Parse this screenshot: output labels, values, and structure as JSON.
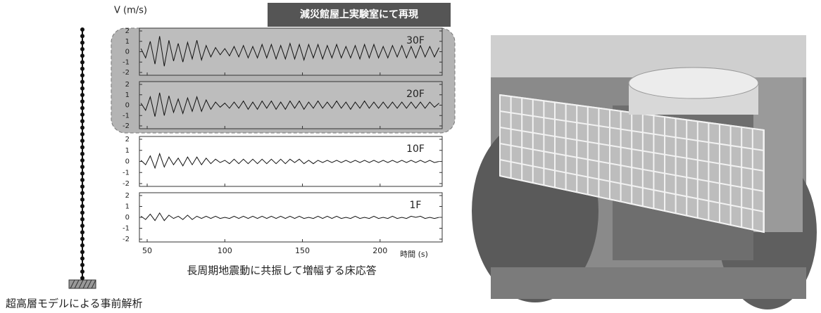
{
  "chart_data": {
    "type": "line",
    "y_label": "V (m/s)",
    "x_label": "時間 (s)",
    "caption": "長周期地震動に共振して増幅する床応答",
    "highlight_label": "減災館屋上実験室にて再現",
    "facets": true,
    "xlim": [
      45,
      240
    ],
    "xticks": [
      50,
      100,
      150,
      200
    ],
    "ylim": [
      -2,
      2
    ],
    "yticks": [
      -2,
      -1,
      0,
      1,
      2
    ],
    "x": [
      46,
      49,
      52,
      55,
      58,
      61,
      64,
      67,
      70,
      73,
      76,
      79,
      82,
      85,
      88,
      91,
      94,
      97,
      100,
      103,
      106,
      109,
      112,
      115,
      118,
      121,
      124,
      127,
      130,
      133,
      136,
      139,
      142,
      145,
      148,
      151,
      154,
      157,
      160,
      163,
      166,
      169,
      172,
      175,
      178,
      181,
      184,
      187,
      190,
      193,
      196,
      199,
      202,
      205,
      208,
      211,
      214,
      217,
      220,
      223,
      226,
      229,
      232,
      235,
      238
    ],
    "series": [
      {
        "name": "30F",
        "color": "#111111",
        "values": [
          0.3,
          -0.6,
          1.0,
          -1.2,
          1.5,
          -1.4,
          1.1,
          -0.9,
          0.8,
          -1.0,
          0.9,
          -0.7,
          1.1,
          -0.8,
          0.6,
          -0.5,
          0.4,
          -0.3,
          0.3,
          -0.4,
          0.5,
          -0.5,
          0.6,
          -0.6,
          0.5,
          -0.6,
          0.7,
          -0.6,
          0.7,
          -0.7,
          0.6,
          -0.7,
          0.8,
          -0.7,
          0.7,
          -0.8,
          0.7,
          -0.6,
          0.7,
          -0.7,
          0.6,
          -0.6,
          0.7,
          -0.6,
          0.5,
          -0.6,
          0.6,
          -0.7,
          0.7,
          -0.6,
          0.7,
          -0.6,
          0.5,
          -0.6,
          0.6,
          -0.5,
          0.6,
          -0.6,
          0.5,
          -0.6,
          0.6,
          -0.5,
          0.5,
          -0.5,
          0.4
        ]
      },
      {
        "name": "20F",
        "color": "#111111",
        "values": [
          0.2,
          -0.5,
          0.8,
          -1.1,
          1.2,
          -1.0,
          0.9,
          -0.7,
          0.6,
          -0.8,
          0.7,
          -0.6,
          0.8,
          -0.6,
          0.5,
          -0.4,
          0.3,
          -0.2,
          0.2,
          -0.3,
          0.3,
          -0.3,
          0.4,
          -0.4,
          0.3,
          -0.4,
          0.4,
          -0.3,
          0.4,
          -0.4,
          0.3,
          -0.4,
          0.4,
          -0.3,
          0.4,
          -0.4,
          0.3,
          -0.3,
          0.4,
          -0.3,
          0.3,
          -0.3,
          0.4,
          -0.3,
          0.3,
          -0.4,
          0.3,
          -0.3,
          0.4,
          -0.3,
          0.3,
          -0.3,
          0.3,
          -0.3,
          0.3,
          -0.3,
          0.3,
          -0.3,
          0.3,
          -0.3,
          0.3,
          -0.3,
          0.3,
          -0.2,
          0.2
        ]
      },
      {
        "name": "10F",
        "color": "#111111",
        "values": [
          0.1,
          -0.3,
          0.5,
          -0.6,
          0.7,
          -0.5,
          0.4,
          -0.3,
          0.3,
          -0.4,
          0.4,
          -0.3,
          0.4,
          -0.3,
          0.3,
          -0.2,
          0.2,
          -0.1,
          0.1,
          -0.2,
          0.2,
          -0.2,
          0.2,
          -0.2,
          0.2,
          -0.2,
          0.2,
          -0.2,
          0.2,
          -0.2,
          0.2,
          -0.2,
          0.2,
          -0.1,
          0.2,
          -0.2,
          0.1,
          -0.2,
          0.1,
          -0.1,
          0.1,
          -0.1,
          0.1,
          -0.1,
          0.1,
          -0.1,
          0.1,
          -0.1,
          0.1,
          -0.1,
          0.1,
          -0.1,
          0.1,
          -0.1,
          0.1,
          -0.1,
          0.1,
          -0.1,
          0.1,
          -0.1,
          0.1,
          -0.1,
          0.1,
          -0.1,
          0.0
        ]
      },
      {
        "name": "1F",
        "color": "#111111",
        "values": [
          0.1,
          -0.2,
          0.3,
          -0.3,
          0.4,
          -0.3,
          0.2,
          -0.1,
          0.1,
          -0.2,
          0.2,
          -0.2,
          0.1,
          -0.1,
          0.1,
          -0.1,
          0.1,
          -0.1,
          0.0,
          -0.1,
          0.1,
          -0.1,
          0.1,
          -0.1,
          0.1,
          -0.1,
          0.1,
          -0.1,
          0.1,
          -0.1,
          0.1,
          -0.1,
          0.1,
          -0.1,
          0.1,
          -0.1,
          0.0,
          -0.1,
          0.1,
          -0.1,
          0.1,
          -0.1,
          0.1,
          -0.1,
          0.0,
          -0.1,
          0.1,
          -0.1,
          0.0,
          -0.1,
          0.1,
          -0.1,
          0.0,
          -0.1,
          0.1,
          -0.1,
          0.0,
          -0.1,
          0.1,
          0.0,
          0.1,
          -0.1,
          0.0,
          -0.1,
          0.0
        ]
      }
    ]
  },
  "model_caption": "超高層モデルによる事前解析"
}
